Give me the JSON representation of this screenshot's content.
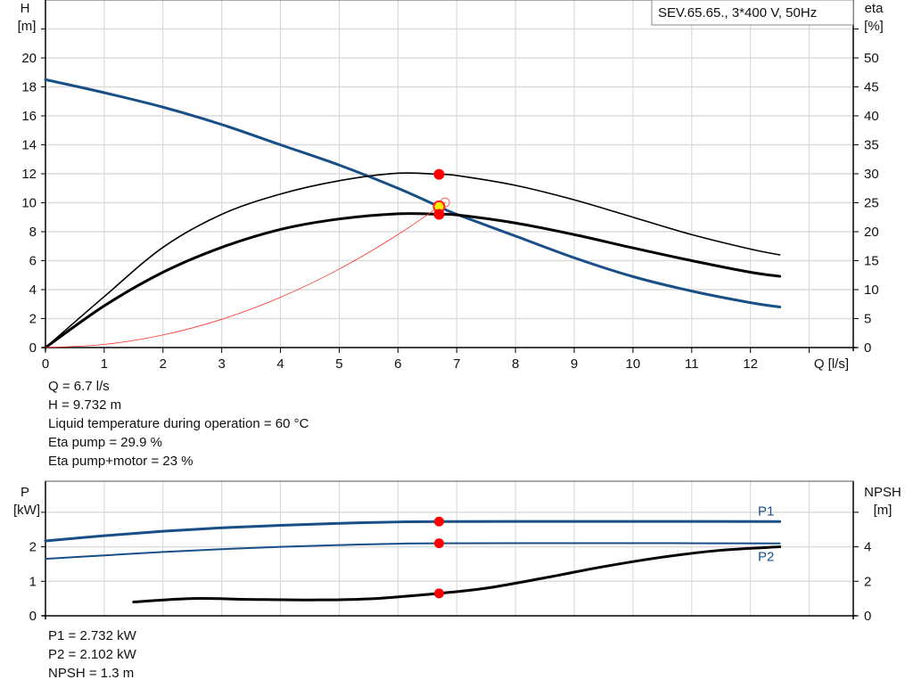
{
  "chart_data": [
    {
      "type": "line",
      "title": "SEV.65.65., 3*400 V, 50Hz",
      "xlabel": "Q [l/s]",
      "ylabel_left": [
        "H",
        "[m]"
      ],
      "ylabel_right": [
        "eta",
        "[%]"
      ],
      "xlim": [
        0,
        13.75
      ],
      "ylim_left": [
        0,
        24
      ],
      "ylim_right": [
        0,
        60
      ],
      "x_ticks": [
        "0",
        "1",
        "2",
        "3",
        "4",
        "5",
        "6",
        "7",
        "8",
        "9",
        "10",
        "11",
        "12"
      ],
      "y_ticks_left": [
        "0",
        "2",
        "4",
        "6",
        "8",
        "10",
        "12",
        "14",
        "16",
        "18",
        "20"
      ],
      "y_ticks_right": [
        "0",
        "5",
        "10",
        "15",
        "20",
        "25",
        "30",
        "35",
        "40",
        "45",
        "50"
      ],
      "grid": true,
      "series": [
        {
          "name": "H",
          "axis": "left",
          "color": "#174f86",
          "width": 3,
          "x": [
            0,
            1,
            2,
            3,
            4,
            5,
            6,
            6.7,
            7,
            8,
            9,
            10,
            11,
            12,
            12.5
          ],
          "y": [
            18.5,
            17.6,
            16.6,
            15.4,
            14.0,
            12.6,
            11.0,
            9.732,
            9.2,
            7.7,
            6.2,
            4.9,
            3.9,
            3.1,
            2.8
          ]
        },
        {
          "name": "Eta pump",
          "axis": "right",
          "color": "#000000",
          "width": 1.6,
          "x": [
            0,
            1,
            2,
            3,
            4,
            5,
            6,
            6.7,
            7,
            8,
            9,
            10,
            11,
            12,
            12.5
          ],
          "y": [
            0,
            8.8,
            17.3,
            23,
            26.5,
            28.8,
            30.1,
            29.9,
            29.7,
            28,
            25.5,
            22.5,
            19.5,
            17,
            16
          ]
        },
        {
          "name": "Eta pump+motor",
          "axis": "right",
          "color": "#000000",
          "width": 3,
          "x": [
            0,
            1,
            2,
            3,
            4,
            5,
            6,
            6.7,
            7,
            8,
            9,
            10,
            11,
            12,
            12.5
          ],
          "y": [
            0,
            7.2,
            13,
            17.3,
            20.4,
            22.2,
            23.1,
            23,
            22.9,
            21.5,
            19.5,
            17.2,
            15,
            13,
            12.3
          ]
        },
        {
          "name": "System curve",
          "axis": "left",
          "color": "#ff3030",
          "width": 0.8,
          "x": [
            0,
            1,
            2,
            3,
            4,
            5,
            6,
            6.8
          ],
          "y": [
            0,
            0.217,
            0.867,
            1.95,
            3.47,
            5.42,
            7.8,
            10.02
          ]
        }
      ],
      "markers": [
        {
          "x": 6.7,
          "y": 29.9,
          "axis": "right",
          "color": "#ff0000"
        },
        {
          "x": 6.7,
          "y": 9.732,
          "axis": "left",
          "color": "#ffee00"
        },
        {
          "x": 6.7,
          "y": 23,
          "axis": "right",
          "color": "#ff0000"
        }
      ]
    },
    {
      "type": "line",
      "ylabel_left": [
        "P",
        "[kW]"
      ],
      "ylabel_right": [
        "NPSH",
        "[m]"
      ],
      "xlim": [
        0,
        13.75
      ],
      "ylim_left": [
        0,
        3.9
      ],
      "ylim_right": [
        0,
        7.8
      ],
      "y_ticks_left": [
        "0",
        "1",
        "2"
      ],
      "y_ticks_right": [
        "0",
        "2",
        "4"
      ],
      "grid": true,
      "series": [
        {
          "name": "P1",
          "axis": "left",
          "color": "#174f86",
          "width": 3,
          "x": [
            0,
            1,
            2,
            3,
            4,
            5,
            6,
            6.7,
            8,
            10,
            12.5
          ],
          "y": [
            2.17,
            2.32,
            2.45,
            2.55,
            2.62,
            2.68,
            2.72,
            2.732,
            2.735,
            2.735,
            2.73
          ]
        },
        {
          "name": "P2",
          "axis": "left",
          "color": "#174f86",
          "width": 2,
          "x": [
            0,
            1,
            2,
            3,
            4,
            5,
            6,
            6.7,
            8,
            10,
            12.5
          ],
          "y": [
            1.65,
            1.75,
            1.85,
            1.93,
            2.0,
            2.05,
            2.09,
            2.102,
            2.105,
            2.105,
            2.1
          ]
        },
        {
          "name": "NPSH",
          "axis": "right",
          "color": "#000000",
          "width": 3,
          "x": [
            1.5,
            2.5,
            3.5,
            4.5,
            5.5,
            6.7,
            7.5,
            8.5,
            9.5,
            10.5,
            11.5,
            12.5
          ],
          "y": [
            0.8,
            1.0,
            0.95,
            0.92,
            0.98,
            1.3,
            1.6,
            2.2,
            2.85,
            3.4,
            3.8,
            4.0
          ]
        }
      ],
      "markers": [
        {
          "x": 6.7,
          "y": 2.732,
          "axis": "left",
          "color": "#ff0000"
        },
        {
          "x": 6.7,
          "y": 2.102,
          "axis": "left",
          "color": "#ff0000"
        },
        {
          "x": 6.7,
          "y": 1.3,
          "axis": "right",
          "color": "#ff0000"
        }
      ]
    }
  ],
  "duty_point": [
    "Q = 6.7 l/s",
    "H = 9.732 m",
    "Liquid temperature during operation = 60 °C",
    "Eta pump = 29.9 %",
    "Eta pump+motor = 23 %"
  ],
  "power_point": [
    "P1 = 2.732 kW",
    "P2 = 2.102 kW",
    "NPSH = 1.3 m"
  ]
}
